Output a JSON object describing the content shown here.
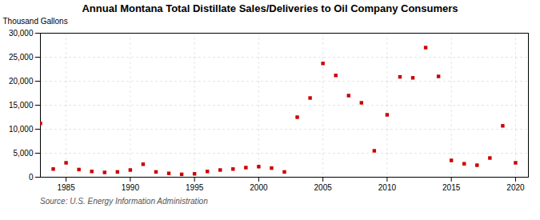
{
  "chart_data": {
    "type": "scatter",
    "title": "Annual Montana Total Distillate Sales/Deliveries to Oil Company Consumers",
    "ylabel": "Thousand Gallons",
    "annotations": [
      "Source: U.S. Energy Information Administration"
    ],
    "color": "#cc0000",
    "marker": "square",
    "grid": true,
    "xlim": [
      1983,
      2021
    ],
    "ylim": [
      0,
      30000
    ],
    "xticks": [
      1985,
      1990,
      1995,
      2000,
      2005,
      2010,
      2015,
      2020
    ],
    "yticks": [
      0,
      {
        "value": 5000,
        "label": "5,000"
      },
      {
        "value": 10000,
        "label": "10,000"
      },
      {
        "value": 15000,
        "label": "15,000"
      },
      {
        "value": 20000,
        "label": "20,000"
      },
      {
        "value": 25000,
        "label": "25,000"
      },
      {
        "value": 30000,
        "label": "30,000"
      }
    ],
    "x": [
      1983,
      1984,
      1985,
      1986,
      1987,
      1988,
      1989,
      1990,
      1991,
      1992,
      1993,
      1994,
      1995,
      1996,
      1997,
      1998,
      1999,
      2000,
      2001,
      2002,
      2003,
      2004,
      2005,
      2006,
      2007,
      2008,
      2009,
      2010,
      2011,
      2012,
      2013,
      2014,
      2015,
      2016,
      2017,
      2018,
      2019,
      2020
    ],
    "values": [
      11200,
      1700,
      3000,
      1600,
      1200,
      1000,
      1100,
      1500,
      2700,
      1100,
      800,
      600,
      700,
      1200,
      1500,
      1700,
      2000,
      2200,
      1900,
      1100,
      12500,
      16500,
      23700,
      21200,
      17000,
      15500,
      5500,
      13000,
      20900,
      20700,
      27000,
      21000,
      3500,
      2800,
      2500,
      4000,
      10700,
      3000
    ]
  }
}
